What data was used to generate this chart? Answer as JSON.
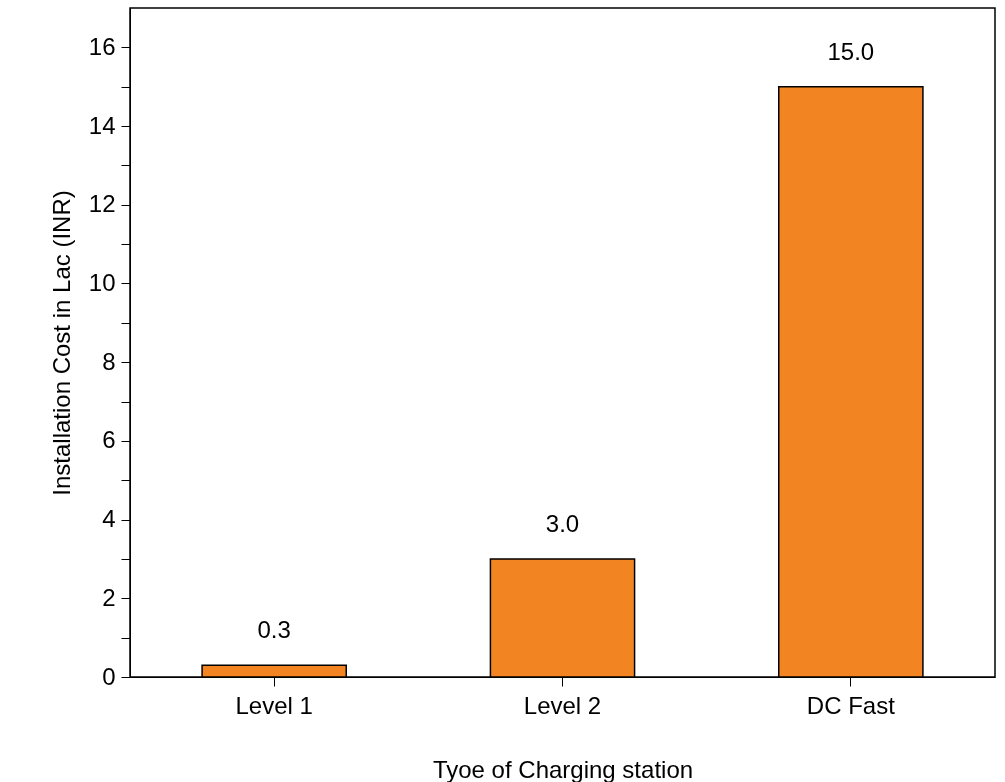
{
  "chart_data": {
    "type": "bar",
    "categories": [
      "Level 1",
      "Level 2",
      "DC Fast"
    ],
    "values": [
      0.3,
      3.0,
      15.0
    ],
    "value_labels": [
      "0.3",
      "3.0",
      "15.0"
    ],
    "color": "#f28522",
    "xlabel": "Tyoe of Charging station",
    "ylabel": "Installation Cost in Lac (INR)",
    "ylim": [
      0,
      17
    ],
    "yticks": [
      0,
      {
        "value": 1,
        "label": null
      },
      2,
      {
        "value": 3,
        "label": null
      },
      4,
      {
        "value": 5,
        "label": null
      },
      6,
      {
        "value": 7,
        "label": null
      },
      8,
      {
        "value": 9,
        "label": null
      },
      10,
      {
        "value": 11,
        "label": null
      },
      12,
      {
        "value": 13,
        "label": null
      },
      14,
      {
        "value": 15,
        "label": null
      },
      16
    ],
    "grid": false
  }
}
